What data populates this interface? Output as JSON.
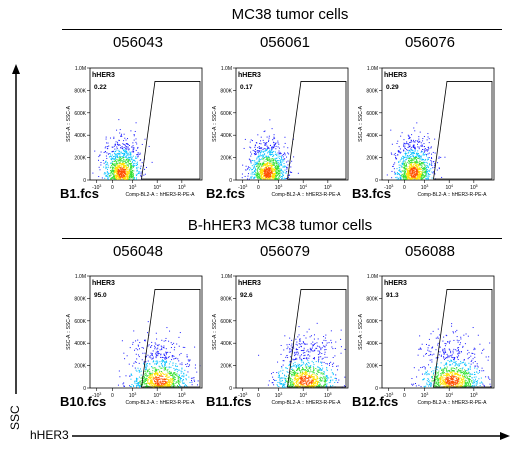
{
  "groups": [
    {
      "title": "MC38 tumor cells",
      "panels": [
        {
          "clone": "056043",
          "file": "B1.fcs",
          "gate_name": "hHER3",
          "gate_pct": "0.22",
          "x_axis": "Comp-BL2-A :: hHER3-R-PE-A",
          "y_axis": "SSC-A :: SSC-A",
          "positive": false
        },
        {
          "clone": "056061",
          "file": "B2.fcs",
          "gate_name": "hHER3",
          "gate_pct": "0.17",
          "x_axis": "Comp-BL2-A :: hHER3-R-PE-A",
          "y_axis": "SSC-A :: SSC-A",
          "positive": false
        },
        {
          "clone": "056076",
          "file": "B3.fcs",
          "gate_name": "hHER3",
          "gate_pct": "0.29",
          "x_axis": "Comp-BL2-A :: hHER3-R-PE-A",
          "y_axis": "SSC-A :: SSC-A",
          "positive": false
        }
      ]
    },
    {
      "title": "B-hHER3 MC38 tumor cells",
      "panels": [
        {
          "clone": "056048",
          "file": "B10.fcs",
          "gate_name": "hHER3",
          "gate_pct": "95.0",
          "x_axis": "Comp-BL2-A :: hHER3-R-PE-A",
          "y_axis": "SSC-A :: SSC-A",
          "positive": true
        },
        {
          "clone": "056079",
          "file": "B11.fcs",
          "gate_name": "hHER3",
          "gate_pct": "92.6",
          "x_axis": "Comp-BL2-A :: hHER3-R-PE-A",
          "y_axis": "SSC-A :: SSC-A",
          "positive": true
        },
        {
          "clone": "056088",
          "file": "B12.fcs",
          "gate_name": "hHER3",
          "gate_pct": "91.3",
          "x_axis": "Comp-BL2-A :: hHER3-R-PE-A",
          "y_axis": "SSC-A :: SSC-A",
          "positive": true
        }
      ]
    }
  ],
  "axis_labels": {
    "y": "SSC",
    "x": "hHER3"
  },
  "chart_data": {
    "type": "scatter",
    "y_ticks": [
      "0",
      "200K",
      "400K",
      "600K",
      "800K",
      "1.0M"
    ],
    "x_ticks": [
      "0",
      "10^3",
      "10^4",
      "10^5"
    ],
    "x_ticks_neg": [
      "-10^3"
    ],
    "x_scale": "biexponential",
    "density_colors": [
      "#1a1aff",
      "#00c0ff",
      "#30e030",
      "#ffe000",
      "#ff5000"
    ]
  }
}
